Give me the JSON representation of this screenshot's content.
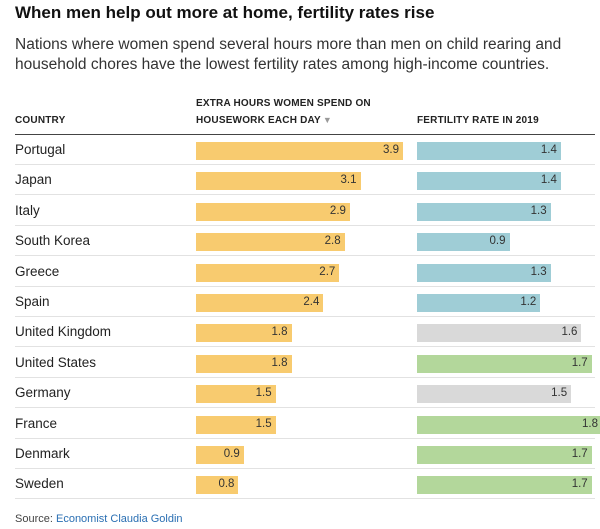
{
  "title": "When men help out more at home, fertility rates rise",
  "subtitle": "Nations where women spend several hours more than men on child rearing and household chores have the lowest fertility rates among high-income countries.",
  "columns": {
    "country": "COUNTRY",
    "housework": "EXTRA HOURS WOMEN SPEND ON HOUSEWORK EACH DAY",
    "sort_indicator": "▼",
    "fertility": "FERTILITY RATE IN 2019"
  },
  "source": {
    "label": "Source:",
    "text": "Economist Claudia Goldin"
  },
  "colors": {
    "housework": "#f8cb6f",
    "fertility_low": "#9fcdd6",
    "fertility_mid": "#d9d9d9",
    "fertility_high": "#b3d79b"
  },
  "chart_data": {
    "type": "bar",
    "title": "When men help out more at home, fertility rates rise",
    "categories": [
      "Portugal",
      "Japan",
      "Italy",
      "South Korea",
      "Greece",
      "Spain",
      "United Kingdom",
      "United States",
      "Germany",
      "France",
      "Denmark",
      "Sweden"
    ],
    "series": [
      {
        "name": "EXTRA HOURS WOMEN SPEND ON HOUSEWORK EACH DAY",
        "values": [
          3.9,
          3.1,
          2.9,
          2.8,
          2.7,
          2.4,
          1.8,
          1.8,
          1.5,
          1.5,
          0.9,
          0.8
        ],
        "max": 3.9
      },
      {
        "name": "FERTILITY RATE IN 2019",
        "values": [
          1.4,
          1.4,
          1.3,
          0.9,
          1.3,
          1.2,
          1.6,
          1.7,
          1.5,
          1.8,
          1.7,
          1.7
        ],
        "color_groups": [
          "low",
          "low",
          "low",
          "low",
          "low",
          "low",
          "mid",
          "high",
          "mid",
          "high",
          "high",
          "high"
        ],
        "max": 1.8
      }
    ],
    "grid": false,
    "legend": "none"
  }
}
